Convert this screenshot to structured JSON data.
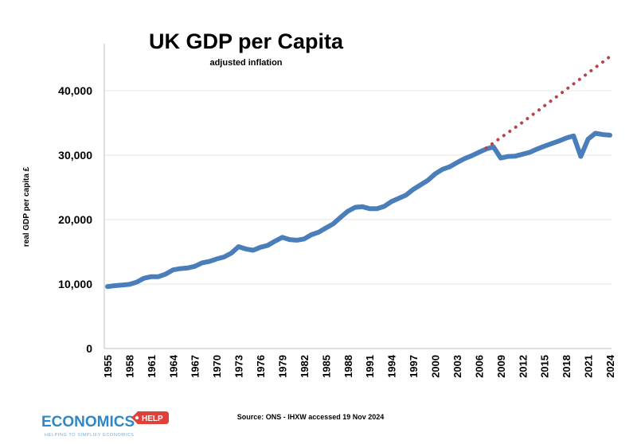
{
  "chart_data": {
    "type": "line",
    "title": "UK GDP per Capita",
    "subtitle": "adjusted inflation",
    "xlabel": "",
    "ylabel": "real GDP per capita £",
    "ylim": [
      0,
      45000
    ],
    "xlim": [
      1955,
      2025
    ],
    "yticks": [
      0,
      10000,
      20000,
      30000,
      40000
    ],
    "ytick_labels": [
      "0",
      "10,000",
      "20,000",
      "30,000",
      "40,000"
    ],
    "xticks": [
      "1955",
      "1958",
      "1961",
      "1964",
      "1967",
      "1970",
      "1973",
      "1976",
      "1979",
      "1982",
      "1985",
      "1988",
      "1991",
      "1994",
      "1997",
      "2000",
      "2003",
      "2006",
      "2009",
      "2012",
      "2015",
      "2018",
      "2021",
      "2024"
    ],
    "grid": true,
    "series": [
      {
        "name": "real GDP per capita",
        "color": "#4a7ebb",
        "style": "solid",
        "x": [
          1955,
          1956,
          1957,
          1958,
          1959,
          1960,
          1961,
          1962,
          1963,
          1964,
          1965,
          1966,
          1967,
          1968,
          1969,
          1970,
          1971,
          1972,
          1973,
          1974,
          1975,
          1976,
          1977,
          1978,
          1979,
          1980,
          1981,
          1982,
          1983,
          1984,
          1985,
          1986,
          1987,
          1988,
          1989,
          1990,
          1991,
          1992,
          1993,
          1994,
          1995,
          1996,
          1997,
          1998,
          1999,
          2000,
          2001,
          2002,
          2003,
          2004,
          2005,
          2006,
          2007,
          2008,
          2009,
          2010,
          2011,
          2012,
          2013,
          2014,
          2015,
          2016,
          2017,
          2018,
          2019,
          2020,
          2021,
          2022,
          2023,
          2024
        ],
        "values": [
          9600,
          9750,
          9850,
          9950,
          10300,
          10900,
          11150,
          11150,
          11550,
          12200,
          12400,
          12500,
          12750,
          13300,
          13500,
          13900,
          14200,
          14800,
          15800,
          15450,
          15250,
          15700,
          16000,
          16650,
          17250,
          16900,
          16800,
          17000,
          17650,
          18050,
          18700,
          19350,
          20350,
          21300,
          21900,
          22000,
          21700,
          21700,
          22050,
          22800,
          23300,
          23800,
          24700,
          25400,
          26100,
          27100,
          27800,
          28200,
          28850,
          29450,
          29900,
          30450,
          30950,
          31300,
          29550,
          29800,
          29850,
          30150,
          30450,
          30950,
          31400,
          31800,
          32200,
          32650,
          33000,
          29800,
          32500,
          33400,
          33200,
          33100
        ]
      },
      {
        "name": "pre-2008 trend",
        "color": "#b5454a",
        "style": "dotted",
        "x": [
          2007,
          2008,
          2009,
          2010,
          2011,
          2012,
          2013,
          2014,
          2015,
          2016,
          2017,
          2018,
          2019,
          2020,
          2021,
          2022,
          2023,
          2024
        ],
        "values": [
          31100,
          31900,
          32700,
          33500,
          34300,
          35100,
          35950,
          36800,
          37650,
          38500,
          39350,
          40200,
          41050,
          41900,
          42750,
          43600,
          44450,
          45300
        ]
      }
    ],
    "source": "Source: ONS - IHXW accessed 19 Nov 2024"
  },
  "logo": {
    "brand": "ECONOMICS",
    "badge": "HELP",
    "tagline": "HELPING TO SIMPLIFY ECONOMICS",
    "brand_color": "#2e88c7",
    "badge_color": "#e0403a"
  }
}
